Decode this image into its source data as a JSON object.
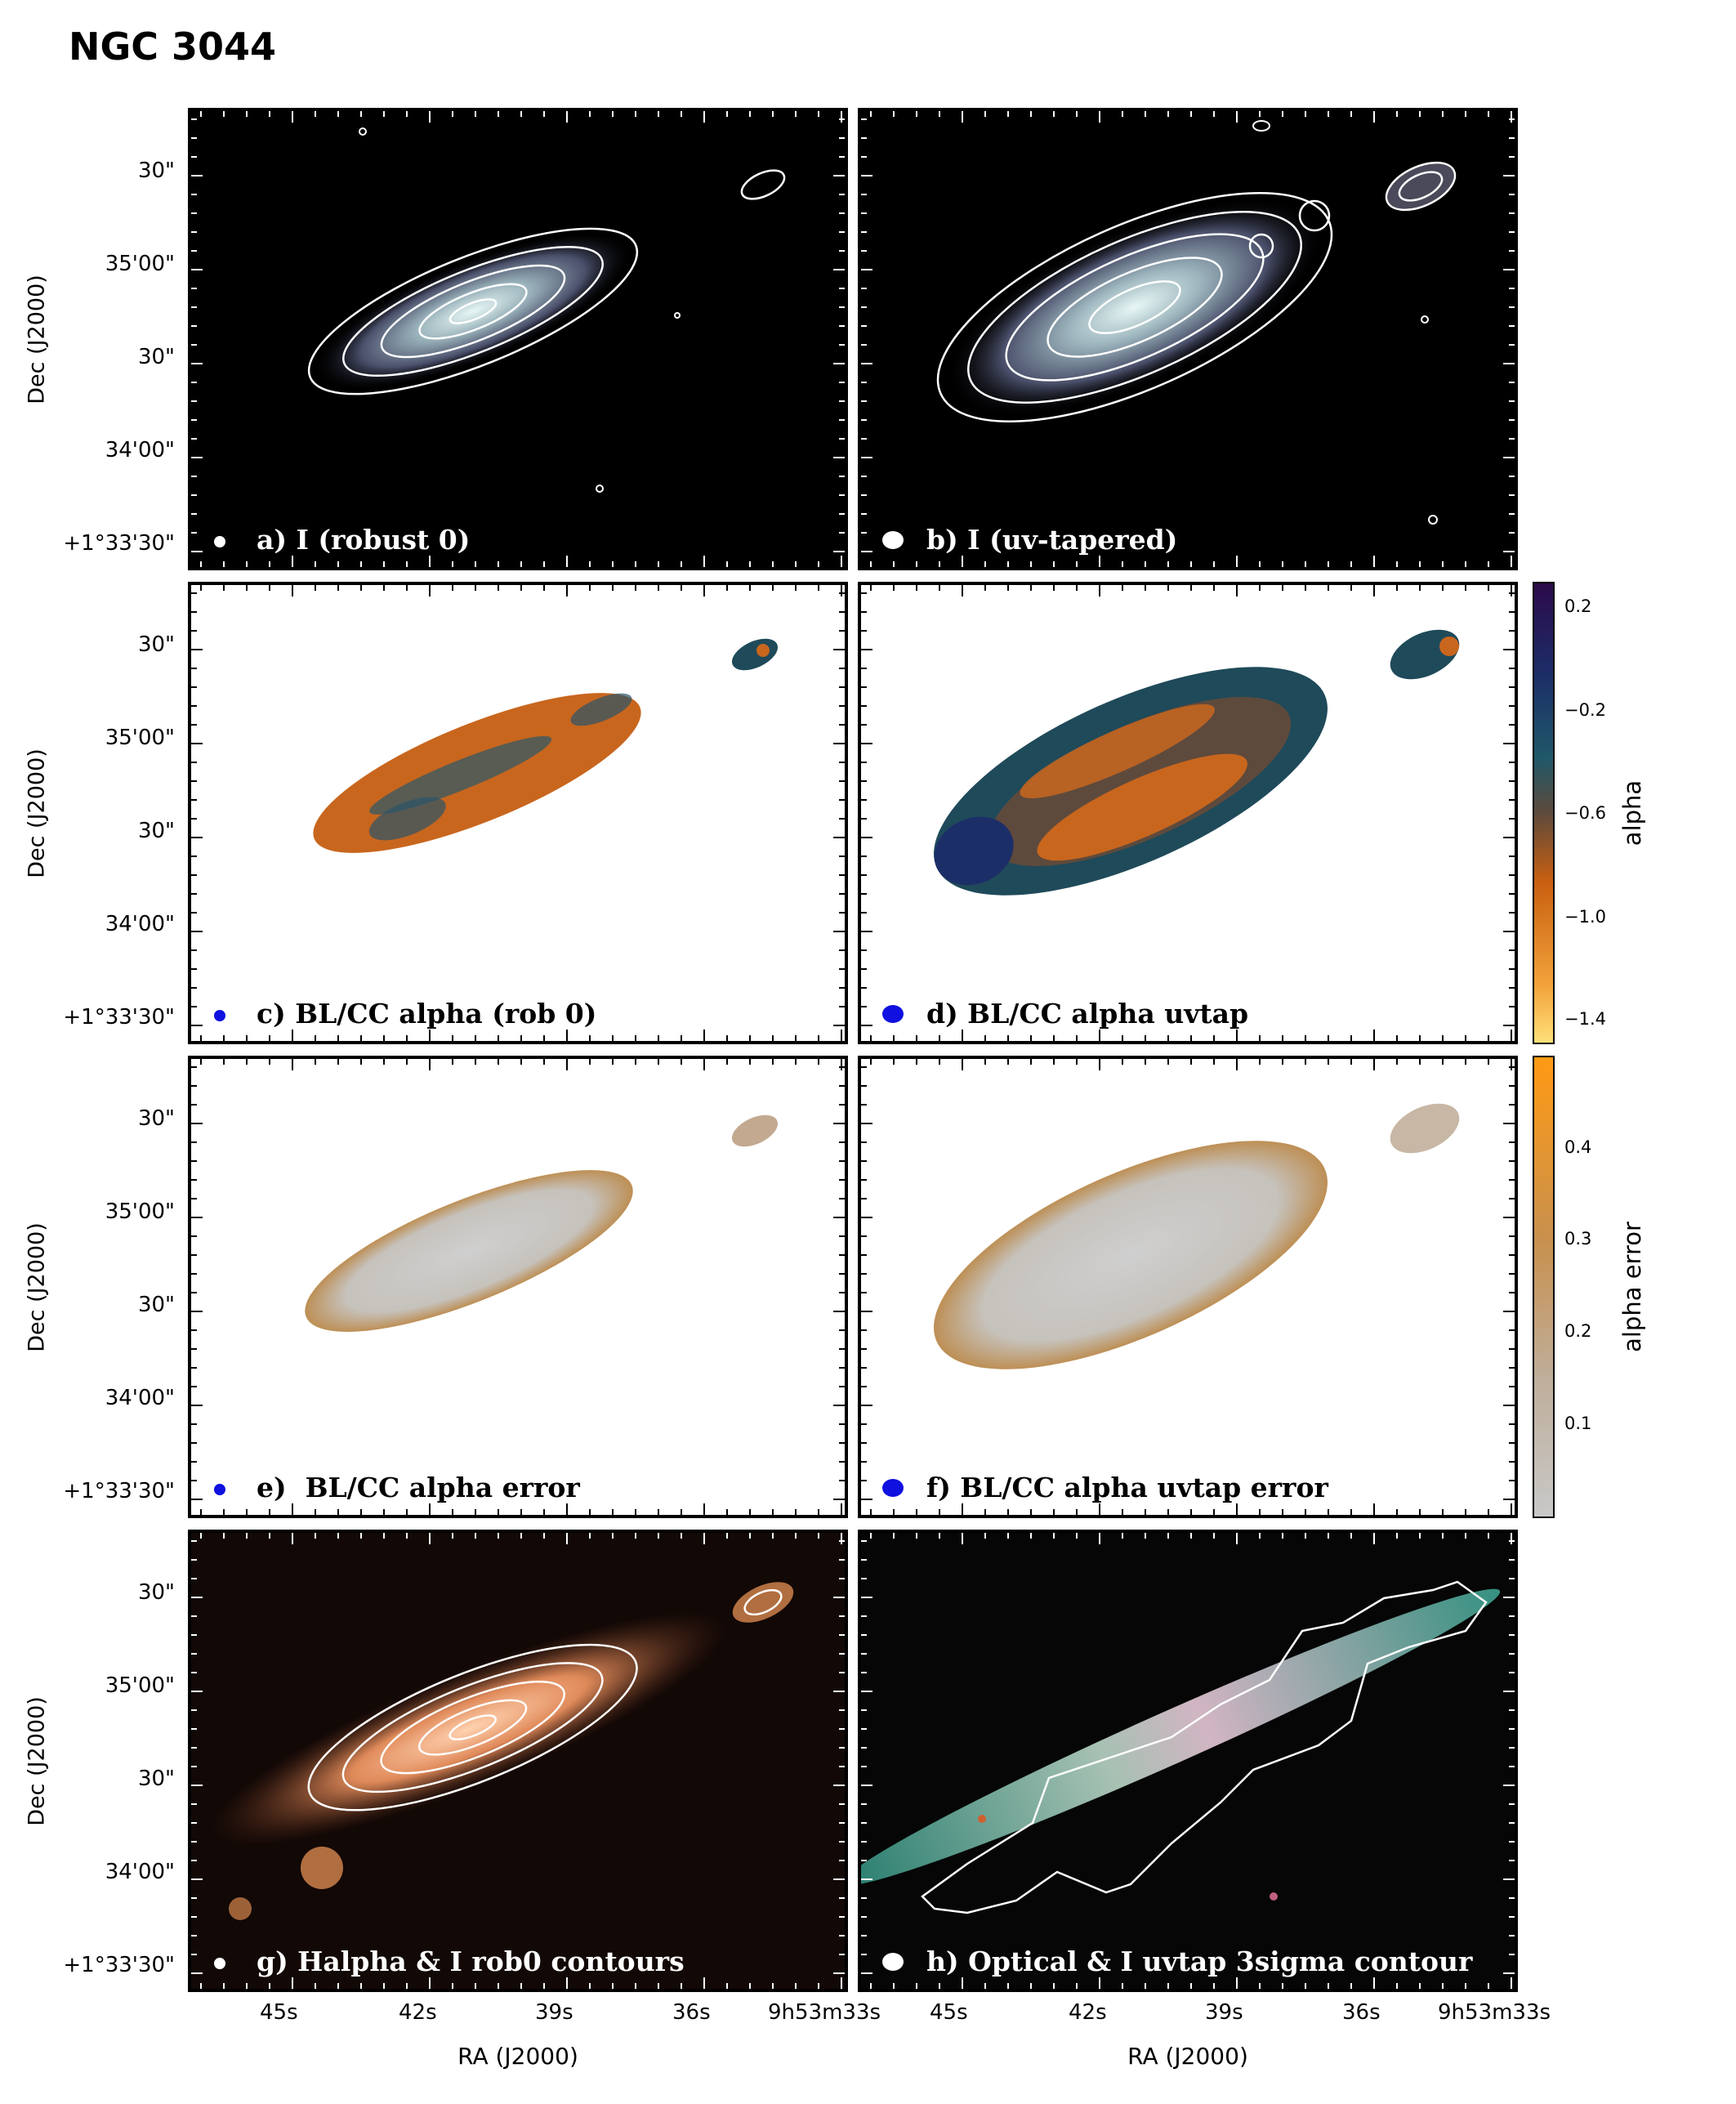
{
  "title": "NGC 3044",
  "dec_ticks": [
    "30\"",
    "35'00\"",
    "30\"",
    "34'00\"",
    "+1°33'30\""
  ],
  "dec_axis_label": "Dec (J2000)",
  "ra_ticks": [
    "45s",
    "42s",
    "39s",
    "36s",
    "9h53m33s"
  ],
  "ra_axis_label": "RA (J2000)",
  "panels": [
    {
      "id": "a",
      "label": "a) I (robust 0)"
    },
    {
      "id": "b",
      "label": "b) I (uv-tapered)"
    },
    {
      "id": "c",
      "label": "c) BL/CC alpha (rob 0)"
    },
    {
      "id": "d",
      "label": "d) BL/CC alpha uvtap"
    },
    {
      "id": "e",
      "label": "e)  BL/CC alpha error"
    },
    {
      "id": "f",
      "label": "f) BL/CC alpha uvtap error"
    },
    {
      "id": "g",
      "label": "g) Halpha & I rob0 contours"
    },
    {
      "id": "h",
      "label": "h) Optical & I uvtap 3sigma contour"
    }
  ],
  "colorbar_alpha": {
    "label": "alpha",
    "ticks": [
      "0.2",
      "−0.2",
      "−0.6",
      "−1.0",
      "−1.4"
    ]
  },
  "colorbar_error": {
    "label": "alpha error",
    "ticks": [
      "0.4",
      "0.3",
      "0.2",
      "0.1"
    ]
  },
  "colors": {
    "beam_white": "#ffffff",
    "beam_blue": "#1010e0",
    "alpha_orange": "#c8661e",
    "alpha_teal": "#1f4a5a",
    "error_tan": "#c08c4e",
    "error_grey": "#c9c9c9"
  }
}
